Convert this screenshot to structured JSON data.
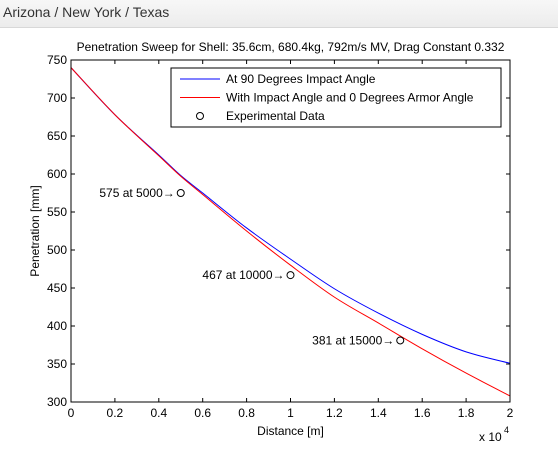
{
  "header": {
    "title": "Arizona / New York / Texas"
  },
  "chart_data": {
    "type": "line",
    "title": "Penetration Sweep for Shell: 35.6cm, 680.4kg, 792m/s MV, Drag Constant 0.332",
    "xlabel": "Distance [m]",
    "ylabel": "Penetration [mm]",
    "x_multiplier_label": "x 10",
    "x_multiplier_exp": "4",
    "xlim": [
      0,
      20000
    ],
    "ylim": [
      300,
      750
    ],
    "xticks": [
      0,
      2000,
      4000,
      6000,
      8000,
      10000,
      12000,
      14000,
      16000,
      18000,
      20000
    ],
    "xtick_labels": [
      "0",
      "0.2",
      "0.4",
      "0.6",
      "0.8",
      "1",
      "1.2",
      "1.4",
      "1.6",
      "1.8",
      "2"
    ],
    "yticks": [
      300,
      350,
      400,
      450,
      500,
      550,
      600,
      650,
      700,
      750
    ],
    "ytick_labels": [
      "300",
      "350",
      "400",
      "450",
      "500",
      "550",
      "600",
      "650",
      "700",
      "750"
    ],
    "grid": false,
    "legend_position": "top-right",
    "series": [
      {
        "name": "At 90 Degrees Impact Angle",
        "color": "#0000ff",
        "x": [
          0,
          2000,
          4000,
          5000,
          6000,
          8000,
          10000,
          12000,
          14000,
          16000,
          18000,
          20000
        ],
        "values": [
          740,
          678,
          625,
          598,
          575,
          529,
          488,
          449,
          417,
          389,
          366,
          351
        ]
      },
      {
        "name": "With Impact Angle and 0 Degrees Armor Angle",
        "color": "#ff0000",
        "x": [
          0,
          2000,
          4000,
          5000,
          6000,
          8000,
          10000,
          12000,
          14000,
          16000,
          18000,
          20000
        ],
        "values": [
          740,
          678,
          624,
          597,
          573,
          525,
          480,
          438,
          404,
          370,
          338,
          308
        ]
      },
      {
        "name": "Experimental Data",
        "marker": "circle",
        "x": [
          5000,
          10000,
          15000
        ],
        "values": [
          575,
          467,
          381
        ]
      }
    ],
    "annotations": [
      {
        "text": "575 at 5000",
        "x": 5000,
        "y": 575
      },
      {
        "text": "467 at 10000",
        "x": 10000,
        "y": 467
      },
      {
        "text": "381 at 15000",
        "x": 15000,
        "y": 381
      }
    ],
    "arrow_glyph": "→"
  }
}
